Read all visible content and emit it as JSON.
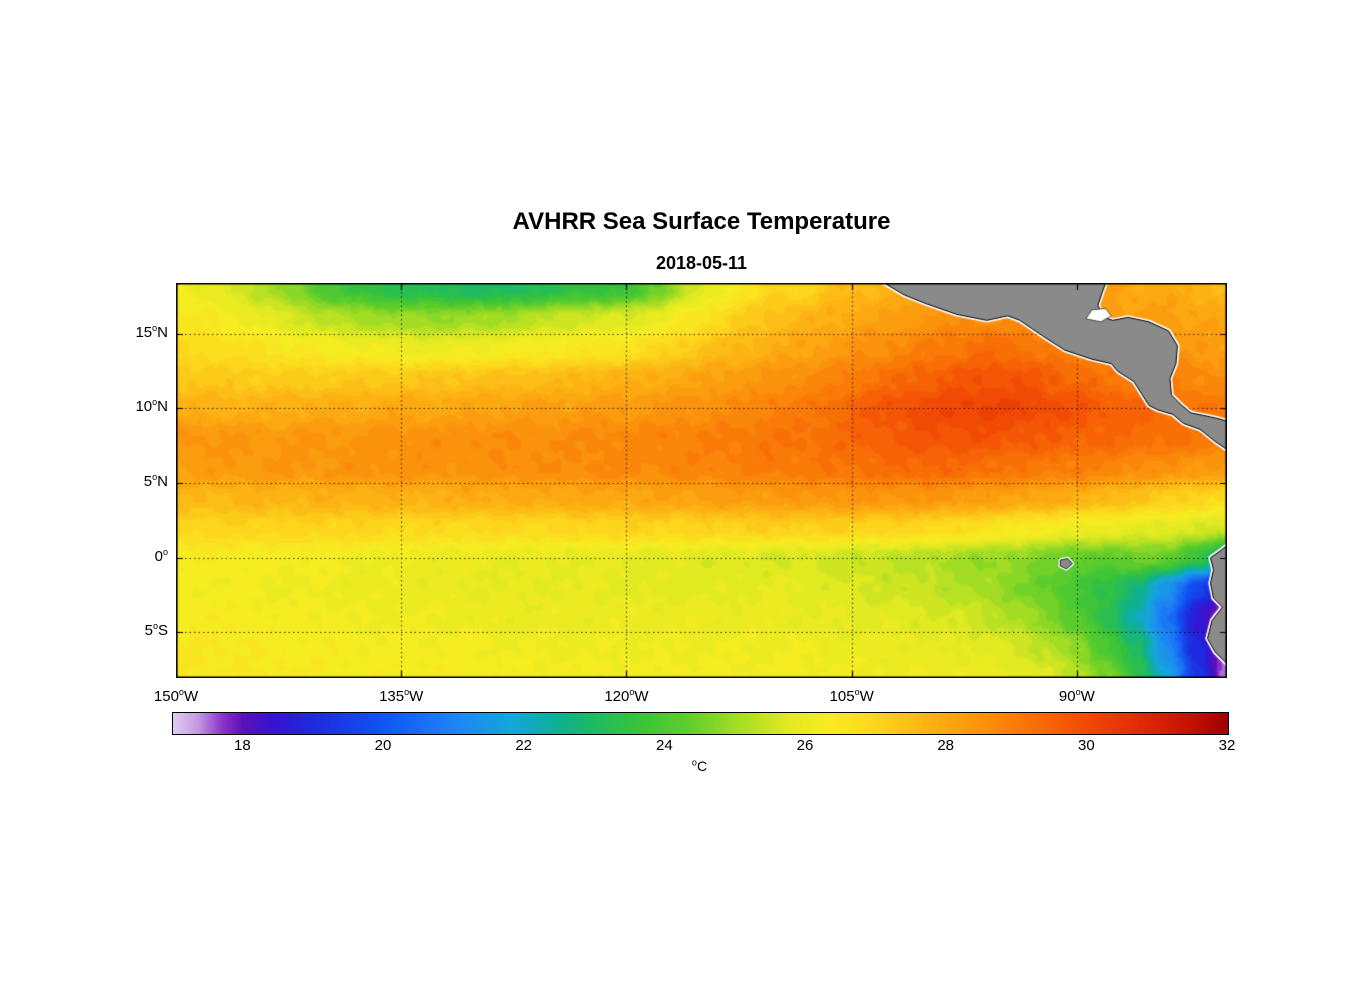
{
  "figure": {
    "background": "#ffffff"
  },
  "chart_data": {
    "type": "heatmap",
    "title": "AVHRR Sea Surface Temperature",
    "subtitle": "2018-05-11",
    "xlabel": "",
    "ylabel": "",
    "grid": "dotted",
    "lon_range": [
      -150,
      -80
    ],
    "lat_range": [
      -8.05,
      18.4
    ],
    "x_ticks": {
      "values": [
        -150,
        -135,
        -120,
        -105,
        -90
      ],
      "labels": [
        "150°W",
        "135°W",
        "120°W",
        "105°W",
        "90°W"
      ]
    },
    "y_ticks": {
      "values": [
        15,
        10,
        5,
        0,
        -5
      ],
      "labels": [
        "15°N",
        "10°N",
        "5°N",
        "0°",
        "5°S"
      ]
    },
    "colorbar": {
      "min": 17,
      "max": 32,
      "ticks": [
        18,
        20,
        22,
        24,
        26,
        28,
        30,
        32
      ],
      "label": "°C",
      "orientation": "horizontal"
    },
    "land_color": "#8a8a8a",
    "coast_halo": "#ffffff",
    "colormap": [
      [
        17.0,
        "#e2ccf2"
      ],
      [
        17.35,
        "#c49be0"
      ],
      [
        17.7,
        "#8b34c9"
      ],
      [
        18.0,
        "#5b10b8"
      ],
      [
        18.4,
        "#3813cf"
      ],
      [
        19.0,
        "#1e2ae0"
      ],
      [
        20.0,
        "#1155f2"
      ],
      [
        21.0,
        "#1e84f5"
      ],
      [
        21.8,
        "#14a6dd"
      ],
      [
        22.5,
        "#0fb191"
      ],
      [
        23.0,
        "#1fba62"
      ],
      [
        23.6,
        "#38c33c"
      ],
      [
        24.3,
        "#5ecd2b"
      ],
      [
        25.0,
        "#a2dc24"
      ],
      [
        25.7,
        "#dfe921"
      ],
      [
        26.3,
        "#f8ed21"
      ],
      [
        27.0,
        "#fcd51c"
      ],
      [
        27.7,
        "#fcb514"
      ],
      [
        28.5,
        "#fb920c"
      ],
      [
        29.2,
        "#f97106"
      ],
      [
        30.0,
        "#f14a04"
      ],
      [
        30.8,
        "#e02802"
      ],
      [
        31.5,
        "#c41001"
      ],
      [
        32.0,
        "#9e0000"
      ]
    ],
    "sst_grid": {
      "units": "°C",
      "lon_start": -150,
      "lon_step": 2,
      "lat_start": 18,
      "lat_step": -2,
      "values": [
        [
          26.2,
          26.0,
          25.6,
          25.2,
          24.6,
          24.0,
          23.6,
          23.3,
          23.2,
          23.1,
          23.0,
          23.0,
          23.2,
          23.4,
          23.6,
          23.6,
          24.4,
          25.4,
          26.0,
          26.5,
          27.0,
          27.0,
          27.5,
          27.6,
          27.8,
          28.0,
          28.2,
          28.4,
          28.5,
          28.5,
          28.4,
          28.2,
          28.0,
          28.0,
          27.8,
          27.6
        ],
        [
          26.5,
          26.4,
          26.2,
          25.9,
          25.6,
          25.3,
          25.1,
          25.0,
          24.9,
          24.9,
          25.0,
          25.1,
          25.3,
          25.5,
          25.6,
          25.7,
          26.0,
          26.4,
          26.8,
          27.2,
          27.5,
          27.7,
          27.9,
          28.1,
          28.2,
          28.4,
          28.6,
          28.6,
          28.5,
          28.5,
          28.4,
          28.3,
          28.2,
          28.2,
          28.1,
          28.0
        ],
        [
          26.8,
          26.8,
          26.7,
          26.6,
          26.4,
          26.3,
          26.2,
          26.1,
          26.0,
          26.0,
          26.1,
          26.2,
          26.3,
          26.4,
          26.5,
          26.6,
          26.9,
          27.2,
          27.5,
          27.7,
          27.9,
          28.1,
          28.3,
          28.5,
          28.7,
          28.9,
          29.1,
          29.3,
          29.2,
          29.0,
          28.8,
          28.7,
          28.5,
          28.4,
          28.3,
          28.2
        ],
        [
          27.3,
          27.3,
          27.2,
          27.2,
          27.2,
          27.2,
          27.3,
          27.3,
          27.3,
          27.4,
          27.4,
          27.5,
          27.5,
          27.6,
          27.7,
          27.8,
          27.9,
          28.0,
          28.2,
          28.3,
          28.5,
          28.6,
          28.8,
          29.1,
          29.3,
          29.5,
          29.7,
          29.8,
          29.8,
          29.6,
          29.4,
          29.1,
          29.0,
          28.9,
          28.7,
          28.6
        ],
        [
          27.8,
          27.8,
          27.8,
          27.8,
          27.9,
          27.9,
          27.9,
          28.0,
          28.0,
          28.0,
          28.1,
          28.1,
          28.2,
          28.2,
          28.3,
          28.3,
          28.4,
          28.5,
          28.6,
          28.7,
          28.9,
          29.0,
          29.3,
          29.6,
          29.8,
          30.0,
          30.1,
          30.2,
          30.1,
          30.0,
          29.8,
          29.6,
          29.5,
          29.3,
          29.1,
          29.0
        ],
        [
          28.4,
          28.4,
          28.4,
          28.3,
          28.4,
          28.4,
          28.4,
          28.5,
          28.5,
          28.5,
          28.6,
          28.6,
          28.6,
          28.6,
          28.7,
          28.7,
          28.8,
          28.8,
          28.9,
          29.0,
          29.1,
          29.2,
          29.3,
          29.5,
          29.6,
          29.8,
          29.8,
          29.8,
          29.7,
          29.6,
          29.5,
          29.4,
          29.3,
          29.2,
          29.1,
          29.0
        ],
        [
          28.2,
          28.3,
          28.3,
          28.4,
          28.4,
          28.4,
          28.5,
          28.5,
          28.5,
          28.5,
          28.5,
          28.6,
          28.6,
          28.6,
          28.7,
          28.7,
          28.7,
          28.8,
          28.8,
          28.9,
          29.0,
          29.0,
          29.1,
          29.2,
          29.3,
          29.4,
          29.3,
          29.2,
          29.1,
          29.0,
          28.9,
          28.8,
          28.6,
          28.5,
          28.4,
          28.3
        ],
        [
          27.6,
          27.6,
          27.7,
          27.7,
          27.7,
          27.8,
          27.8,
          27.8,
          27.8,
          27.8,
          27.9,
          27.9,
          27.9,
          28.0,
          28.0,
          28.0,
          28.1,
          28.1,
          28.2,
          28.2,
          28.3,
          28.3,
          28.4,
          28.4,
          28.4,
          28.4,
          28.3,
          28.2,
          28.1,
          28.0,
          27.8,
          27.6,
          27.4,
          27.2,
          27.0,
          26.8
        ],
        [
          27.0,
          27.0,
          27.0,
          27.0,
          27.0,
          27.0,
          27.0,
          26.9,
          26.9,
          26.9,
          26.9,
          26.9,
          26.9,
          26.9,
          27.0,
          27.0,
          27.0,
          27.0,
          27.0,
          27.1,
          27.1,
          27.1,
          27.1,
          27.0,
          27.0,
          26.9,
          26.8,
          26.6,
          26.4,
          26.3,
          26.1,
          26.0,
          25.9,
          25.8,
          25.7,
          25.6
        ],
        [
          26.3,
          26.3,
          26.3,
          26.2,
          26.2,
          26.2,
          26.1,
          26.1,
          26.0,
          26.0,
          26.0,
          25.9,
          25.9,
          25.9,
          25.9,
          25.9,
          25.8,
          25.8,
          25.7,
          25.7,
          25.6,
          25.6,
          25.5,
          25.4,
          25.3,
          25.2,
          25.0,
          24.9,
          24.8,
          24.6,
          24.3,
          24.3,
          24.5,
          24.4,
          23.6,
          22.2
        ],
        [
          26.2,
          26.2,
          26.2,
          26.1,
          26.1,
          26.1,
          26.0,
          26.0,
          26.0,
          26.0,
          25.9,
          25.9,
          25.9,
          25.9,
          25.9,
          25.8,
          25.8,
          25.8,
          25.8,
          25.8,
          25.9,
          25.8,
          25.7,
          25.6,
          25.5,
          25.4,
          25.2,
          25.0,
          24.7,
          24.3,
          23.9,
          23.4,
          22.7,
          21.4,
          19.6,
          18.2
        ],
        [
          26.3,
          26.3,
          26.3,
          26.2,
          26.2,
          26.2,
          26.1,
          26.1,
          26.1,
          26.1,
          26.0,
          26.0,
          26.0,
          26.0,
          26.0,
          26.0,
          26.0,
          26.0,
          26.0,
          26.0,
          26.0,
          25.9,
          25.9,
          25.8,
          25.8,
          25.7,
          25.6,
          25.4,
          25.1,
          24.7,
          24.1,
          23.3,
          22.2,
          20.6,
          18.6,
          17.3
        ],
        [
          26.4,
          26.4,
          26.4,
          26.3,
          26.3,
          26.3,
          26.2,
          26.2,
          26.2,
          26.2,
          26.2,
          26.1,
          26.1,
          26.1,
          26.1,
          26.1,
          26.1,
          26.1,
          26.1,
          26.1,
          26.1,
          26.1,
          26.0,
          26.0,
          26.0,
          25.9,
          25.9,
          25.8,
          25.6,
          25.3,
          24.8,
          24.0,
          22.9,
          21.2,
          18.9,
          17.4
        ],
        [
          26.4,
          26.4,
          26.4,
          26.4,
          26.4,
          26.3,
          26.3,
          26.3,
          26.3,
          26.3,
          26.3,
          26.3,
          26.2,
          26.2,
          26.2,
          26.2,
          26.2,
          26.2,
          26.2,
          26.2,
          26.2,
          26.2,
          26.2,
          26.1,
          26.1,
          26.1,
          26.1,
          26.0,
          25.9,
          25.7,
          25.3,
          24.6,
          23.5,
          21.8,
          19.3,
          17.5
        ]
      ]
    },
    "land_polygons": {
      "central_america": [
        [
          -103.0,
          18.5
        ],
        [
          -101.5,
          17.6
        ],
        [
          -100.0,
          17.0
        ],
        [
          -98.0,
          16.3
        ],
        [
          -96.0,
          15.9
        ],
        [
          -94.6,
          16.2
        ],
        [
          -93.8,
          15.9
        ],
        [
          -92.2,
          14.8
        ],
        [
          -90.8,
          13.9
        ],
        [
          -89.0,
          13.3
        ],
        [
          -87.7,
          13.0
        ],
        [
          -87.3,
          12.5
        ],
        [
          -86.2,
          11.8
        ],
        [
          -85.7,
          11.0
        ],
        [
          -85.2,
          10.2
        ],
        [
          -84.6,
          9.9
        ],
        [
          -83.6,
          9.6
        ],
        [
          -82.9,
          9.0
        ],
        [
          -81.8,
          8.6
        ],
        [
          -80.8,
          7.8
        ],
        [
          -79.8,
          7.1
        ],
        [
          -79.6,
          9.0
        ],
        [
          -80.5,
          9.3
        ],
        [
          -81.4,
          9.5
        ],
        [
          -82.4,
          9.7
        ],
        [
          -83.0,
          10.2
        ],
        [
          -83.7,
          10.9
        ],
        [
          -83.8,
          12.0
        ],
        [
          -83.4,
          13.0
        ],
        [
          -83.3,
          14.2
        ],
        [
          -83.9,
          15.2
        ],
        [
          -85.2,
          15.8
        ],
        [
          -86.6,
          16.1
        ],
        [
          -87.6,
          15.9
        ],
        [
          -88.2,
          16.1
        ],
        [
          -88.6,
          16.9
        ],
        [
          -88.3,
          17.8
        ],
        [
          -88.0,
          18.6
        ]
      ],
      "south_america": [
        [
          -78.8,
          1.8
        ],
        [
          -79.3,
          1.6
        ],
        [
          -79.9,
          0.9
        ],
        [
          -80.4,
          0.5
        ],
        [
          -81.1,
          0.0
        ],
        [
          -80.9,
          -0.8
        ],
        [
          -81.1,
          -1.7
        ],
        [
          -80.9,
          -2.7
        ],
        [
          -80.3,
          -3.3
        ],
        [
          -81.0,
          -4.2
        ],
        [
          -81.3,
          -5.4
        ],
        [
          -80.8,
          -6.3
        ],
        [
          -80.0,
          -7.1
        ],
        [
          -79.5,
          -8.3
        ],
        [
          -78.6,
          -8.3
        ]
      ],
      "galapagos": [
        [
          -91.1,
          -0.15
        ],
        [
          -90.6,
          -0.05
        ],
        [
          -90.3,
          -0.4
        ],
        [
          -90.7,
          -0.75
        ],
        [
          -91.1,
          -0.55
        ]
      ]
    },
    "no_data_patches": [
      [
        [
          -89.4,
          16.0
        ],
        [
          -88.4,
          15.8
        ],
        [
          -87.7,
          16.2
        ],
        [
          -88.1,
          16.7
        ],
        [
          -89.0,
          16.6
        ]
      ]
    ]
  }
}
